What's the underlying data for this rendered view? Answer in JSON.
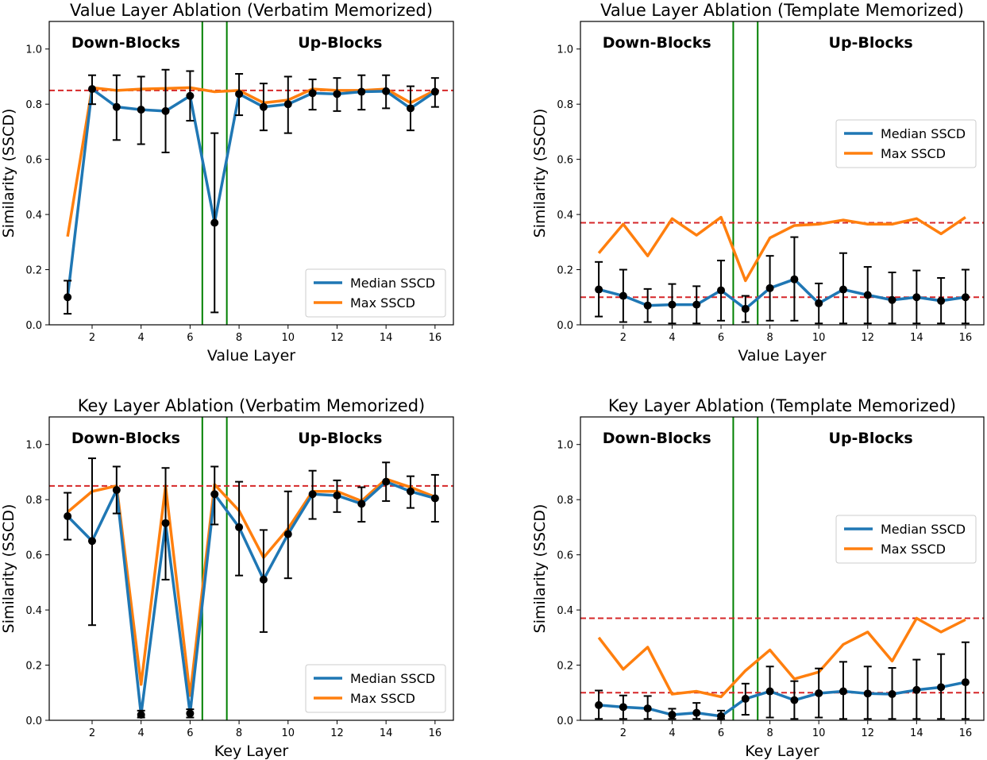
{
  "chart_data": [
    {
      "type": "line",
      "title": "Value Layer Ablation (Verbatim Memorized)",
      "xlabel": "Value Layer",
      "ylabel": "Similarity (SSCD)",
      "xlim": [
        0.25,
        16.75
      ],
      "ylim": [
        0,
        1.1
      ],
      "xticks": [
        2,
        4,
        6,
        8,
        10,
        12,
        14,
        16
      ],
      "yticks": [
        0.0,
        0.2,
        0.4,
        0.6,
        0.8,
        1.0
      ],
      "ytick_labels": [
        "0.0",
        "0.2",
        "0.4",
        "0.6",
        "0.8",
        "1.0"
      ],
      "x": [
        1,
        2,
        3,
        4,
        5,
        6,
        7,
        8,
        9,
        10,
        11,
        12,
        13,
        14,
        15,
        16
      ],
      "region_labels": {
        "left": "Down-Blocks",
        "right": "Up-Blocks"
      },
      "region_dividers": [
        6.5,
        7.5
      ],
      "baselines": [
        0.85
      ],
      "legend_position": "lower-right",
      "series": [
        {
          "name": "Median SSCD",
          "color": "#1f77b4",
          "values": [
            0.1,
            0.855,
            0.79,
            0.78,
            0.775,
            0.83,
            0.37,
            0.837,
            0.79,
            0.8,
            0.84,
            0.837,
            0.845,
            0.847,
            0.785,
            0.845
          ],
          "err_low": [
            0.04,
            0.8,
            0.67,
            0.655,
            0.625,
            0.74,
            0.045,
            0.76,
            0.705,
            0.695,
            0.78,
            0.775,
            0.78,
            0.785,
            0.705,
            0.79
          ],
          "err_high": [
            0.16,
            0.905,
            0.905,
            0.9,
            0.925,
            0.92,
            0.695,
            0.91,
            0.875,
            0.9,
            0.89,
            0.895,
            0.905,
            0.905,
            0.865,
            0.895
          ]
        },
        {
          "name": "Max SSCD",
          "color": "#ff7f0e",
          "values": [
            0.32,
            0.86,
            0.85,
            0.855,
            0.857,
            0.86,
            0.845,
            0.85,
            0.805,
            0.815,
            0.855,
            0.85,
            0.85,
            0.855,
            0.805,
            0.85
          ]
        }
      ]
    },
    {
      "type": "line",
      "title": "Value Layer Ablation (Template Memorized)",
      "xlabel": "Value Layer",
      "ylabel": "Similarity (SSCD)",
      "xlim": [
        0.25,
        16.75
      ],
      "ylim": [
        0,
        1.1
      ],
      "xticks": [
        2,
        4,
        6,
        8,
        10,
        12,
        14,
        16
      ],
      "yticks": [
        0.0,
        0.2,
        0.4,
        0.6,
        0.8,
        1.0
      ],
      "ytick_labels": [
        "0.0",
        "0.2",
        "0.4",
        "0.6",
        "0.8",
        "1.0"
      ],
      "x": [
        1,
        2,
        3,
        4,
        5,
        6,
        7,
        8,
        9,
        10,
        11,
        12,
        13,
        14,
        15,
        16
      ],
      "region_labels": {
        "left": "Down-Blocks",
        "right": "Up-Blocks"
      },
      "region_dividers": [
        6.5,
        7.5
      ],
      "baselines": [
        0.37,
        0.1
      ],
      "legend_position": "center-right",
      "series": [
        {
          "name": "Median SSCD",
          "color": "#1f77b4",
          "values": [
            0.128,
            0.105,
            0.07,
            0.073,
            0.073,
            0.125,
            0.058,
            0.133,
            0.165,
            0.078,
            0.128,
            0.108,
            0.09,
            0.1,
            0.087,
            0.1
          ],
          "err_low": [
            0.03,
            0.01,
            0.01,
            0.005,
            0.005,
            0.015,
            0.01,
            0.015,
            0.015,
            0.005,
            0.005,
            0.005,
            0.005,
            0.005,
            0.005,
            0.005
          ],
          "err_high": [
            0.228,
            0.2,
            0.13,
            0.148,
            0.14,
            0.233,
            0.105,
            0.25,
            0.318,
            0.15,
            0.26,
            0.21,
            0.19,
            0.197,
            0.17,
            0.2
          ]
        },
        {
          "name": "Max SSCD",
          "color": "#ff7f0e",
          "values": [
            0.26,
            0.365,
            0.25,
            0.385,
            0.325,
            0.39,
            0.16,
            0.315,
            0.36,
            0.365,
            0.38,
            0.365,
            0.365,
            0.385,
            0.33,
            0.39
          ]
        }
      ]
    },
    {
      "type": "line",
      "title": "Key Layer Ablation (Verbatim Memorized)",
      "xlabel": "Key Layer",
      "ylabel": "Similarity (SSCD)",
      "xlim": [
        0.25,
        16.75
      ],
      "ylim": [
        0,
        1.1
      ],
      "xticks": [
        2,
        4,
        6,
        8,
        10,
        12,
        14,
        16
      ],
      "yticks": [
        0.0,
        0.2,
        0.4,
        0.6,
        0.8,
        1.0
      ],
      "ytick_labels": [
        "0.0",
        "0.2",
        "0.4",
        "0.6",
        "0.8",
        "1.0"
      ],
      "x": [
        1,
        2,
        3,
        4,
        5,
        6,
        7,
        8,
        9,
        10,
        11,
        12,
        13,
        14,
        15,
        16
      ],
      "region_labels": {
        "left": "Down-Blocks",
        "right": "Up-Blocks"
      },
      "region_dividers": [
        6.5,
        7.5
      ],
      "baselines": [
        0.85
      ],
      "legend_position": "lower-right",
      "series": [
        {
          "name": "Median SSCD",
          "color": "#1f77b4",
          "values": [
            0.74,
            0.65,
            0.835,
            0.02,
            0.715,
            0.025,
            0.82,
            0.7,
            0.51,
            0.675,
            0.82,
            0.815,
            0.785,
            0.865,
            0.83,
            0.805
          ],
          "err_low": [
            0.655,
            0.345,
            0.75,
            0.01,
            0.51,
            0.01,
            0.71,
            0.525,
            0.32,
            0.515,
            0.73,
            0.755,
            0.72,
            0.795,
            0.77,
            0.72
          ],
          "err_high": [
            0.825,
            0.95,
            0.92,
            0.035,
            0.915,
            0.04,
            0.92,
            0.865,
            0.69,
            0.83,
            0.905,
            0.87,
            0.845,
            0.935,
            0.885,
            0.89
          ]
        },
        {
          "name": "Max SSCD",
          "color": "#ff7f0e",
          "values": [
            0.755,
            0.83,
            0.85,
            0.13,
            0.85,
            0.09,
            0.855,
            0.76,
            0.59,
            0.695,
            0.83,
            0.83,
            0.795,
            0.875,
            0.845,
            0.81
          ]
        }
      ]
    },
    {
      "type": "line",
      "title": "Key Layer Ablation (Template Memorized)",
      "xlabel": "Key Layer",
      "ylabel": "Similarity (SSCD)",
      "xlim": [
        0.25,
        16.75
      ],
      "ylim": [
        0,
        1.1
      ],
      "xticks": [
        2,
        4,
        6,
        8,
        10,
        12,
        14,
        16
      ],
      "yticks": [
        0.0,
        0.2,
        0.4,
        0.6,
        0.8,
        1.0
      ],
      "ytick_labels": [
        "0.0",
        "0.2",
        "0.4",
        "0.6",
        "0.8",
        "1.0"
      ],
      "x": [
        1,
        2,
        3,
        4,
        5,
        6,
        7,
        8,
        9,
        10,
        11,
        12,
        13,
        14,
        15,
        16
      ],
      "region_labels": {
        "left": "Down-Blocks",
        "right": "Up-Blocks"
      },
      "region_dividers": [
        6.5,
        7.5
      ],
      "baselines": [
        0.37,
        0.1
      ],
      "legend_position": "center-right",
      "series": [
        {
          "name": "Median SSCD",
          "color": "#1f77b4",
          "values": [
            0.055,
            0.048,
            0.043,
            0.02,
            0.027,
            0.015,
            0.078,
            0.105,
            0.073,
            0.098,
            0.105,
            0.097,
            0.095,
            0.11,
            0.12,
            0.138
          ],
          "err_low": [
            0.005,
            0.005,
            0.005,
            0.005,
            0.005,
            0.005,
            0.02,
            0.01,
            0.005,
            0.01,
            0.005,
            0.005,
            0.005,
            0.005,
            0.005,
            0.005
          ],
          "err_high": [
            0.108,
            0.09,
            0.088,
            0.042,
            0.063,
            0.035,
            0.133,
            0.195,
            0.142,
            0.188,
            0.212,
            0.195,
            0.19,
            0.22,
            0.24,
            0.283
          ]
        },
        {
          "name": "Max SSCD",
          "color": "#ff7f0e",
          "values": [
            0.3,
            0.185,
            0.265,
            0.095,
            0.105,
            0.085,
            0.18,
            0.255,
            0.15,
            0.175,
            0.275,
            0.32,
            0.215,
            0.37,
            0.32,
            0.365
          ]
        }
      ]
    }
  ]
}
